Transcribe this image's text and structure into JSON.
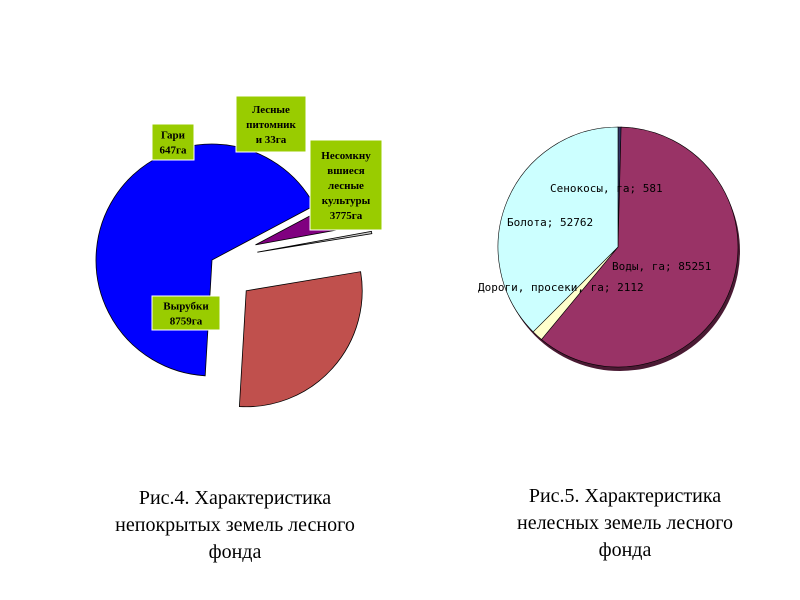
{
  "chart_data": [
    {
      "type": "pie",
      "title": "",
      "slices": [
        {
          "name": "Вырубки",
          "value": 8759,
          "color": "#0000ff",
          "exploded": false,
          "label": [
            "Вырубки",
            "8759га"
          ]
        },
        {
          "name": "Гари",
          "value": 647,
          "color": "#800080",
          "exploded": true,
          "label": [
            "Гари",
            "647га"
          ]
        },
        {
          "name": "Лесные питомники",
          "value": 33,
          "color": "#cccccc",
          "exploded": true,
          "label": [
            "Лесные",
            "питомник",
            "и 33га"
          ]
        },
        {
          "name": "Несомкнувшиеся лесные культуры",
          "value": 3775,
          "color": "#c0504d",
          "exploded": true,
          "label": [
            "Несомкну",
            "вшиеся",
            "лесные",
            "культуры",
            "3775га"
          ]
        }
      ]
    },
    {
      "type": "pie",
      "title": "",
      "slices": [
        {
          "name": "Сенокосы, га",
          "value": 581,
          "color": "#333366",
          "label": "Сенокосы, га; 581"
        },
        {
          "name": "Воды, га",
          "value": 85251,
          "color": "#993366",
          "label": "Воды, га; 85251"
        },
        {
          "name": "Дороги, просеки, га",
          "value": 2112,
          "color": "#ffffcc",
          "label": "Дороги, просеки, га; 2112"
        },
        {
          "name": "Болота",
          "value": 52762,
          "color": "#ccffff",
          "label": "Болота; 52762"
        }
      ]
    }
  ],
  "captions": {
    "fig4": {
      "line1": "Рис.4.  Характеристика",
      "line2": "непокрытых земель лесного",
      "line3": "фонда"
    },
    "fig5": {
      "line1": "Рис.5.  Характеристика",
      "line2": "нелесных земель лесного",
      "line3": "фонда"
    }
  }
}
